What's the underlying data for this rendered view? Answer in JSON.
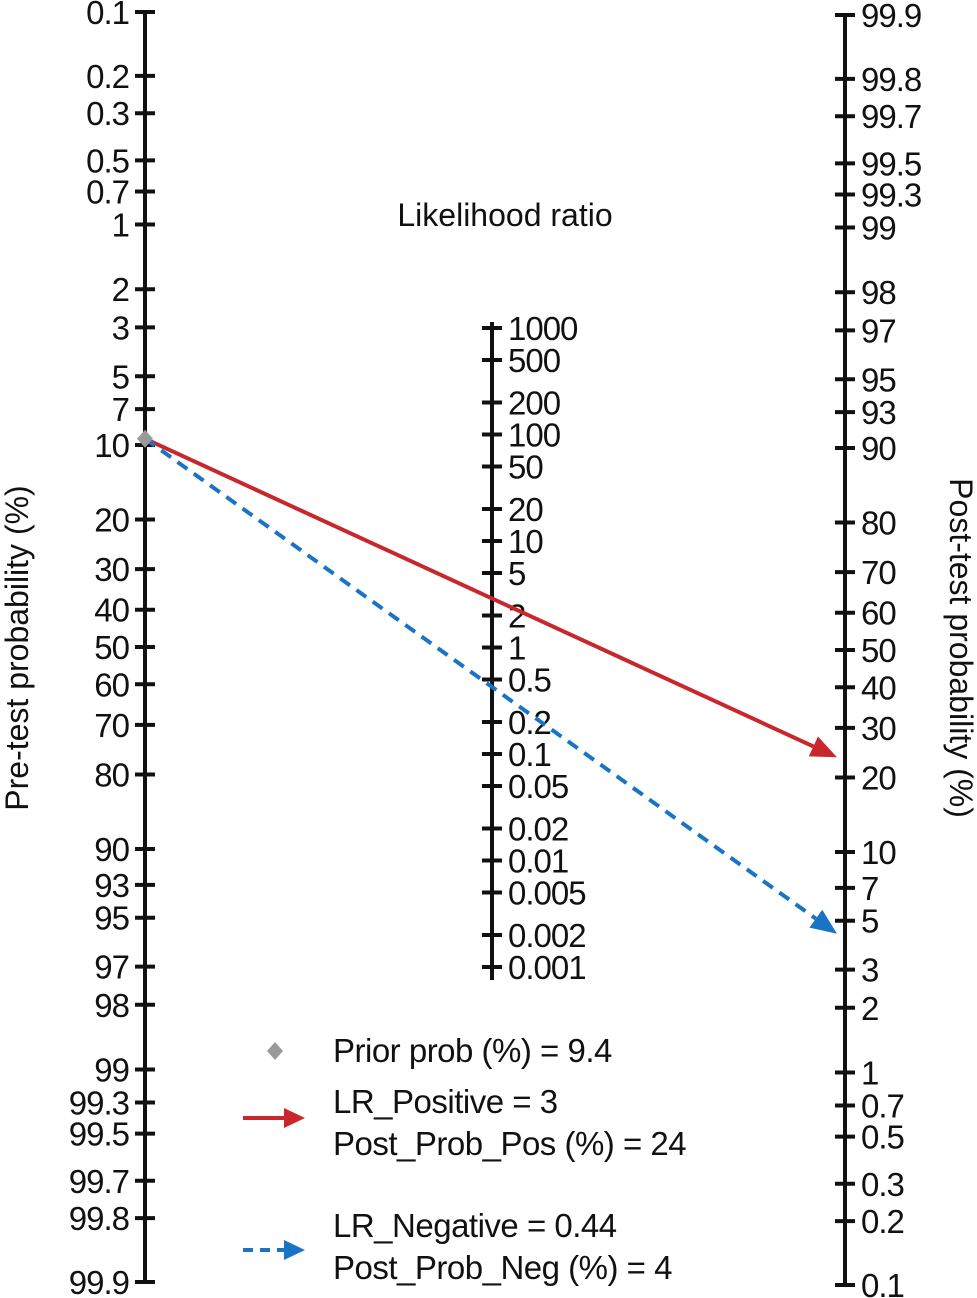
{
  "chart_data": {
    "type": "nomogram",
    "title": "",
    "axes": {
      "left": {
        "label": "Pre-test probability (%)",
        "scale": "logit",
        "range": [
          0.1,
          99.9
        ],
        "ticks": [
          "0.1",
          "0.2",
          "0.3",
          "0.5",
          "0.7",
          "1",
          "2",
          "3",
          "5",
          "7",
          "10",
          "20",
          "30",
          "40",
          "50",
          "60",
          "70",
          "80",
          "90",
          "93",
          "95",
          "97",
          "98",
          "99",
          "99.3",
          "99.5",
          "99.7",
          "99.8",
          "99.9"
        ]
      },
      "middle": {
        "label": "Likelihood ratio",
        "scale": "log",
        "range": [
          0.001,
          1000
        ],
        "ticks": [
          "1000",
          "500",
          "200",
          "100",
          "50",
          "20",
          "10",
          "5",
          "2",
          "1",
          "0.5",
          "0.2",
          "0.1",
          "0.05",
          "0.02",
          "0.01",
          "0.005",
          "0.002",
          "0.001"
        ]
      },
      "right": {
        "label": "Post-test probability (%)",
        "scale": "logit",
        "range": [
          99.9,
          0.1
        ],
        "ticks": [
          "99.9",
          "99.8",
          "99.7",
          "99.5",
          "99.3",
          "99",
          "98",
          "97",
          "95",
          "93",
          "90",
          "80",
          "70",
          "60",
          "50",
          "40",
          "30",
          "20",
          "10",
          "7",
          "5",
          "3",
          "2",
          "1",
          "0.7",
          "0.5",
          "0.3",
          "0.2",
          "0.1"
        ]
      }
    },
    "prior_prob": 9.4,
    "lr_positive": 3,
    "lr_negative": 0.44,
    "post_prob_pos": 24,
    "post_prob_neg": 4,
    "colors": {
      "prior": "#9a9a9a",
      "positive": "#c8282d",
      "negative": "#1a74c6",
      "axis": "#111111"
    },
    "legend": {
      "placement": "bottom-center",
      "prior": "Prior prob (%) = 9.4",
      "positive_lr": "LR_Positive = 3",
      "positive_post": "Post_Prob_Pos (%) = 24",
      "negative_lr": "LR_Negative = 0.44",
      "negative_post": "Post_Prob_Neg (%) = 4"
    }
  }
}
